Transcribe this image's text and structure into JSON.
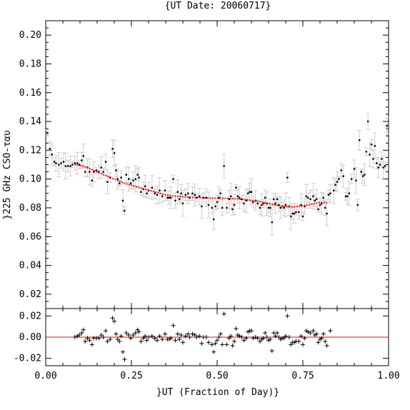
{
  "chart_data": [
    {
      "type": "scatter",
      "title": "{UT Date: 20060717}",
      "ylabel": "}225 GHz CSO-ταυ",
      "xlim": [
        0.0,
        1.0
      ],
      "ylim": [
        0.01,
        0.21
      ],
      "yticks": [
        "0.02",
        "0.04",
        "0.06",
        "0.08",
        "0.10",
        "0.12",
        "0.14",
        "0.16",
        "0.18",
        "0.20"
      ],
      "points": [
        [
          0.005,
          0.132
        ],
        [
          0.012,
          0.121
        ],
        [
          0.018,
          0.117
        ],
        [
          0.025,
          0.112
        ],
        [
          0.03,
          0.111
        ],
        [
          0.038,
          0.11
        ],
        [
          0.045,
          0.111
        ],
        [
          0.052,
          0.112
        ],
        [
          0.058,
          0.109
        ],
        [
          0.065,
          0.109
        ],
        [
          0.072,
          0.109
        ],
        [
          0.078,
          0.11
        ],
        [
          0.085,
          0.111
        ],
        [
          0.092,
          0.111
        ],
        [
          0.098,
          0.11
        ],
        [
          0.105,
          0.113
        ],
        [
          0.11,
          0.116
        ],
        [
          0.115,
          0.105
        ],
        [
          0.122,
          0.108
        ],
        [
          0.128,
          0.105
        ],
        [
          0.135,
          0.099
        ],
        [
          0.14,
          0.105
        ],
        [
          0.148,
          0.106
        ],
        [
          0.155,
          0.105
        ],
        [
          0.162,
          0.108
        ],
        [
          0.168,
          0.105
        ],
        [
          0.175,
          0.112
        ],
        [
          0.18,
          0.098
        ],
        [
          0.188,
          0.101
        ],
        [
          0.195,
          0.121
        ],
        [
          0.2,
          0.118
        ],
        [
          0.205,
          0.106
        ],
        [
          0.21,
          0.1
        ],
        [
          0.215,
          0.097
        ],
        [
          0.22,
          0.101
        ],
        [
          0.225,
          0.085
        ],
        [
          0.23,
          0.078
        ],
        [
          0.235,
          0.103
        ],
        [
          0.242,
          0.1
        ],
        [
          0.248,
          0.097
        ],
        [
          0.255,
          0.099
        ],
        [
          0.262,
          0.1
        ],
        [
          0.268,
          0.103
        ],
        [
          0.272,
          0.101
        ],
        [
          0.278,
          0.091
        ],
        [
          0.285,
          0.093
        ],
        [
          0.29,
          0.095
        ],
        [
          0.295,
          0.09
        ],
        [
          0.3,
          0.092
        ],
        [
          0.31,
          0.094
        ],
        [
          0.318,
          0.09
        ],
        [
          0.325,
          0.089
        ],
        [
          0.332,
          0.092
        ],
        [
          0.34,
          0.088
        ],
        [
          0.348,
          0.092
        ],
        [
          0.355,
          0.087
        ],
        [
          0.36,
          0.087
        ],
        [
          0.365,
          0.087
        ],
        [
          0.372,
          0.1
        ],
        [
          0.378,
          0.085
        ],
        [
          0.385,
          0.091
        ],
        [
          0.39,
          0.086
        ],
        [
          0.395,
          0.09
        ],
        [
          0.4,
          0.083
        ],
        [
          0.408,
          0.089
        ],
        [
          0.415,
          0.09
        ],
        [
          0.42,
          0.087
        ],
        [
          0.428,
          0.09
        ],
        [
          0.435,
          0.089
        ],
        [
          0.44,
          0.087
        ],
        [
          0.448,
          0.088
        ],
        [
          0.455,
          0.081
        ],
        [
          0.46,
          0.087
        ],
        [
          0.468,
          0.087
        ],
        [
          0.475,
          0.082
        ],
        [
          0.485,
          0.08
        ],
        [
          0.49,
          0.072
        ],
        [
          0.495,
          0.081
        ],
        [
          0.5,
          0.084
        ],
        [
          0.505,
          0.087
        ],
        [
          0.51,
          0.09
        ],
        [
          0.515,
          0.08
        ],
        [
          0.52,
          0.109
        ],
        [
          0.528,
          0.08
        ],
        [
          0.535,
          0.086
        ],
        [
          0.54,
          0.088
        ],
        [
          0.545,
          0.079
        ],
        [
          0.55,
          0.082
        ],
        [
          0.555,
          0.094
        ],
        [
          0.56,
          0.088
        ],
        [
          0.565,
          0.087
        ],
        [
          0.572,
          0.086
        ],
        [
          0.578,
          0.083
        ],
        [
          0.585,
          0.085
        ],
        [
          0.59,
          0.09
        ],
        [
          0.595,
          0.091
        ],
        [
          0.6,
          0.091
        ],
        [
          0.605,
          0.084
        ],
        [
          0.612,
          0.085
        ],
        [
          0.618,
          0.083
        ],
        [
          0.625,
          0.08
        ],
        [
          0.63,
          0.082
        ],
        [
          0.635,
          0.083
        ],
        [
          0.64,
          0.087
        ],
        [
          0.645,
          0.083
        ],
        [
          0.65,
          0.08
        ],
        [
          0.655,
          0.08
        ],
        [
          0.66,
          0.07
        ],
        [
          0.665,
          0.086
        ],
        [
          0.67,
          0.083
        ],
        [
          0.675,
          0.086
        ],
        [
          0.68,
          0.082
        ],
        [
          0.685,
          0.08
        ],
        [
          0.69,
          0.081
        ],
        [
          0.695,
          0.08
        ],
        [
          0.7,
          0.082
        ],
        [
          0.705,
          0.101
        ],
        [
          0.71,
          0.081
        ],
        [
          0.715,
          0.074
        ],
        [
          0.72,
          0.076
        ],
        [
          0.725,
          0.076
        ],
        [
          0.73,
          0.077
        ],
        [
          0.738,
          0.077
        ],
        [
          0.745,
          0.082
        ],
        [
          0.75,
          0.074
        ],
        [
          0.755,
          0.081
        ],
        [
          0.76,
          0.088
        ],
        [
          0.765,
          0.087
        ],
        [
          0.772,
          0.086
        ],
        [
          0.78,
          0.088
        ],
        [
          0.785,
          0.085
        ],
        [
          0.79,
          0.086
        ],
        [
          0.795,
          0.079
        ],
        [
          0.8,
          0.082
        ],
        [
          0.805,
          0.083
        ],
        [
          0.81,
          0.087
        ],
        [
          0.815,
          0.08
        ],
        [
          0.82,
          0.076
        ],
        [
          0.825,
          0.089
        ],
        [
          0.83,
          0.09
        ],
        [
          0.84,
          0.092
        ],
        [
          0.845,
          0.096
        ],
        [
          0.85,
          0.098
        ],
        [
          0.855,
          0.1
        ],
        [
          0.862,
          0.106
        ],
        [
          0.868,
          0.102
        ],
        [
          0.875,
          0.088
        ],
        [
          0.88,
          0.088
        ],
        [
          0.885,
          0.09
        ],
        [
          0.892,
          0.1
        ],
        [
          0.9,
          0.107
        ],
        [
          0.905,
          0.099
        ],
        [
          0.91,
          0.082
        ],
        [
          0.915,
          0.127
        ],
        [
          0.92,
          0.105
        ],
        [
          0.925,
          0.102
        ],
        [
          0.93,
          0.103
        ],
        [
          0.935,
          0.119
        ],
        [
          0.94,
          0.14
        ],
        [
          0.945,
          0.117
        ],
        [
          0.95,
          0.124
        ],
        [
          0.955,
          0.114
        ],
        [
          0.96,
          0.123
        ],
        [
          0.965,
          0.111
        ],
        [
          0.97,
          0.108
        ],
        [
          0.975,
          0.11
        ],
        [
          0.98,
          0.114
        ],
        [
          0.985,
          0.108
        ],
        [
          0.99,
          0.109
        ],
        [
          0.995,
          0.137
        ]
      ],
      "fit_curve": [
        [
          0.085,
          0.11
        ],
        [
          0.11,
          0.109
        ],
        [
          0.14,
          0.106
        ],
        [
          0.17,
          0.103
        ],
        [
          0.2,
          0.1
        ],
        [
          0.23,
          0.097
        ],
        [
          0.26,
          0.095
        ],
        [
          0.29,
          0.093
        ],
        [
          0.32,
          0.091
        ],
        [
          0.35,
          0.089
        ],
        [
          0.38,
          0.088
        ],
        [
          0.41,
          0.0875
        ],
        [
          0.44,
          0.0872
        ],
        [
          0.47,
          0.0868
        ],
        [
          0.5,
          0.0867
        ],
        [
          0.53,
          0.0866
        ],
        [
          0.56,
          0.0862
        ],
        [
          0.59,
          0.0855
        ],
        [
          0.62,
          0.0845
        ],
        [
          0.65,
          0.083
        ],
        [
          0.68,
          0.0815
        ],
        [
          0.71,
          0.0806
        ],
        [
          0.74,
          0.081
        ],
        [
          0.77,
          0.0822
        ],
        [
          0.8,
          0.0838
        ],
        [
          0.82,
          0.0835
        ]
      ]
    },
    {
      "type": "scatter",
      "xlabel": "}UT (Fraction of Day)}",
      "xticks": [
        "0.00",
        "0.25",
        "0.50",
        "0.75",
        "1.00"
      ],
      "ylim": [
        -0.027,
        0.027
      ],
      "yticks": [
        "0.02",
        "0.00",
        "-0.02"
      ],
      "reference_line": 0.0,
      "residuals": [
        [
          0.085,
          0.0
        ],
        [
          0.092,
          0.001
        ],
        [
          0.098,
          0.002
        ],
        [
          0.105,
          0.004
        ],
        [
          0.11,
          0.007
        ],
        [
          0.115,
          -0.004
        ],
        [
          0.122,
          -0.001
        ],
        [
          0.128,
          -0.003
        ],
        [
          0.135,
          -0.007
        ],
        [
          0.14,
          -0.001
        ],
        [
          0.148,
          -0.001
        ],
        [
          0.155,
          -0.001
        ],
        [
          0.162,
          0.002
        ],
        [
          0.168,
          0.0
        ],
        [
          0.175,
          0.006
        ],
        [
          0.18,
          -0.004
        ],
        [
          0.188,
          -0.002
        ],
        [
          0.195,
          0.018
        ],
        [
          0.2,
          0.015
        ],
        [
          0.205,
          0.003
        ],
        [
          0.21,
          -0.002
        ],
        [
          0.215,
          -0.004
        ],
        [
          0.22,
          0.001
        ],
        [
          0.225,
          -0.014
        ],
        [
          0.23,
          -0.021
        ],
        [
          0.235,
          0.004
        ],
        [
          0.242,
          0.002
        ],
        [
          0.248,
          -0.001
        ],
        [
          0.255,
          0.002
        ],
        [
          0.262,
          0.004
        ],
        [
          0.268,
          0.007
        ],
        [
          0.272,
          0.005
        ],
        [
          0.278,
          -0.004
        ],
        [
          0.285,
          -0.001
        ],
        [
          0.29,
          0.001
        ],
        [
          0.295,
          -0.003
        ],
        [
          0.3,
          0.0
        ],
        [
          0.31,
          0.001
        ],
        [
          0.318,
          -0.001
        ],
        [
          0.325,
          -0.003
        ],
        [
          0.332,
          0.001
        ],
        [
          0.34,
          -0.002
        ],
        [
          0.348,
          0.003
        ],
        [
          0.355,
          -0.002
        ],
        [
          0.36,
          -0.002
        ],
        [
          0.365,
          -0.001
        ],
        [
          0.372,
          0.011
        ],
        [
          0.378,
          -0.003
        ],
        [
          0.385,
          0.003
        ],
        [
          0.39,
          -0.002
        ],
        [
          0.395,
          0.002
        ],
        [
          0.4,
          -0.005
        ],
        [
          0.408,
          0.001
        ],
        [
          0.415,
          0.003
        ],
        [
          0.42,
          0.0
        ],
        [
          0.428,
          0.003
        ],
        [
          0.435,
          0.002
        ],
        [
          0.44,
          0.0
        ],
        [
          0.448,
          0.001
        ],
        [
          0.455,
          -0.006
        ],
        [
          0.46,
          0.0
        ],
        [
          0.468,
          0.0
        ],
        [
          0.475,
          -0.005
        ],
        [
          0.485,
          -0.007
        ],
        [
          0.49,
          -0.014
        ],
        [
          0.495,
          -0.006
        ],
        [
          0.5,
          -0.003
        ],
        [
          0.505,
          0.0
        ],
        [
          0.51,
          0.003
        ],
        [
          0.515,
          -0.007
        ],
        [
          0.52,
          0.022
        ],
        [
          0.528,
          -0.007
        ],
        [
          0.535,
          -0.001
        ],
        [
          0.54,
          0.001
        ],
        [
          0.545,
          -0.008
        ],
        [
          0.55,
          -0.004
        ],
        [
          0.555,
          0.008
        ],
        [
          0.56,
          0.002
        ],
        [
          0.565,
          0.001
        ],
        [
          0.572,
          0.0
        ],
        [
          0.578,
          -0.003
        ],
        [
          0.585,
          -0.001
        ],
        [
          0.59,
          0.005
        ],
        [
          0.595,
          0.006
        ],
        [
          0.6,
          0.006
        ],
        [
          0.605,
          -0.001
        ],
        [
          0.612,
          0.0
        ],
        [
          0.618,
          -0.001
        ],
        [
          0.625,
          -0.004
        ],
        [
          0.63,
          -0.002
        ],
        [
          0.635,
          -0.001
        ],
        [
          0.64,
          0.004
        ],
        [
          0.645,
          0.0
        ],
        [
          0.65,
          -0.003
        ],
        [
          0.655,
          -0.002
        ],
        [
          0.66,
          -0.013
        ],
        [
          0.665,
          0.004
        ],
        [
          0.67,
          0.001
        ],
        [
          0.675,
          0.004
        ],
        [
          0.68,
          0.0
        ],
        [
          0.685,
          -0.002
        ],
        [
          0.69,
          -0.001
        ],
        [
          0.695,
          -0.001
        ],
        [
          0.7,
          0.001
        ],
        [
          0.705,
          0.02
        ],
        [
          0.71,
          0.0
        ],
        [
          0.715,
          -0.007
        ],
        [
          0.72,
          -0.005
        ],
        [
          0.725,
          -0.005
        ],
        [
          0.73,
          -0.004
        ],
        [
          0.738,
          -0.004
        ],
        [
          0.745,
          0.001
        ],
        [
          0.75,
          -0.007
        ],
        [
          0.755,
          -0.001
        ],
        [
          0.76,
          0.006
        ],
        [
          0.765,
          0.005
        ],
        [
          0.772,
          0.004
        ],
        [
          0.78,
          0.006
        ],
        [
          0.785,
          0.002
        ],
        [
          0.79,
          0.003
        ],
        [
          0.795,
          -0.005
        ],
        [
          0.8,
          -0.002
        ],
        [
          0.805,
          -0.001
        ],
        [
          0.81,
          0.003
        ],
        [
          0.815,
          -0.004
        ],
        [
          0.82,
          -0.008
        ],
        [
          0.83,
          0.006
        ]
      ]
    }
  ],
  "colors": {
    "points": "#000000",
    "error_bars": "#cccccc",
    "fit": "#ff0000",
    "axes": "#000000"
  }
}
